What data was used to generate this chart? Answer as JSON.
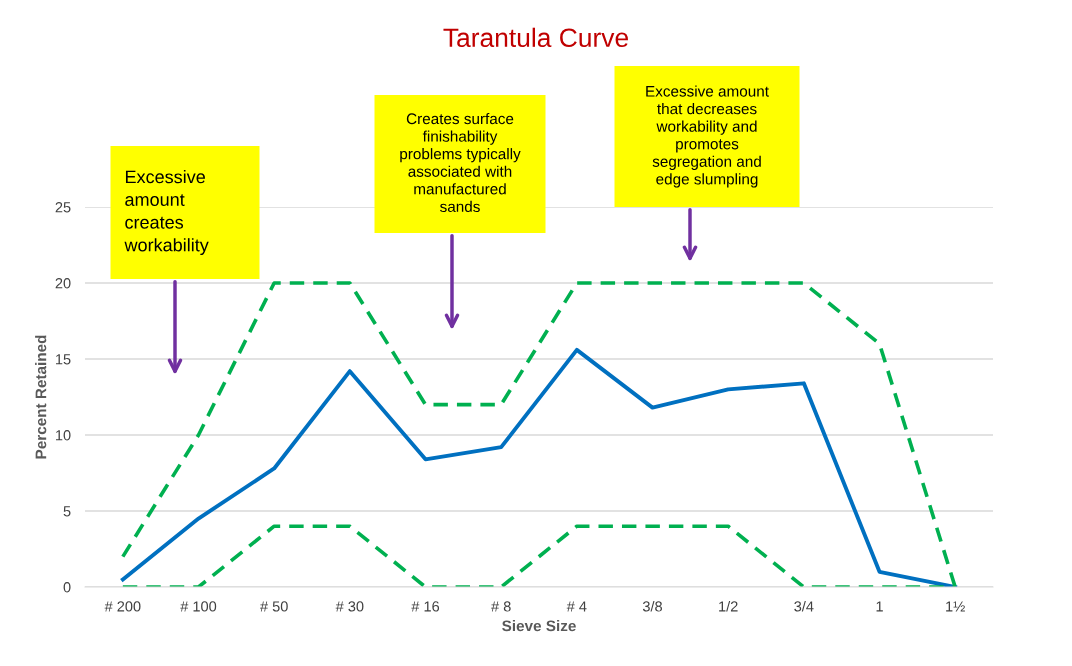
{
  "chart_data": {
    "type": "line",
    "title": "Tarantula Curve",
    "xlabel": "Sieve Size",
    "ylabel": "Percent Retained",
    "categories": [
      "# 200",
      "# 100",
      "# 50",
      "# 30",
      "# 16",
      "# 8",
      "# 4",
      "3/8",
      "1/2",
      "3/4",
      "1",
      "1½"
    ],
    "series": [
      {
        "color": "#0070c0",
        "line_style": "solid",
        "values": [
          0.5,
          4.5,
          7.8,
          14.2,
          8.4,
          9.2,
          15.6,
          11.8,
          13.0,
          13.4,
          1.0,
          0
        ]
      },
      {
        "color": "#00b050",
        "line_style": "dashed",
        "values": [
          2,
          10,
          20,
          20,
          12,
          12,
          20,
          20,
          20,
          20,
          16,
          0
        ]
      },
      {
        "color": "#00b050",
        "line_style": "dashed",
        "values": [
          0,
          0,
          4,
          4,
          0,
          0,
          4,
          4,
          4,
          0,
          0,
          0
        ]
      }
    ],
    "ylim": [
      0,
      25
    ],
    "yticks": [
      0,
      5,
      10,
      15,
      20,
      25
    ],
    "grid": "y",
    "marker": "none",
    "annotations": [
      "Excessive\namount\ncreates\nworkability",
      "Creates surface\nfinishability\nproblems typically\nassociated with\nmanufactured\nsands",
      "Excessive amount\nthat decreases\nworkability and\npromotes\nsegregation and\nedge slumpling"
    ]
  }
}
